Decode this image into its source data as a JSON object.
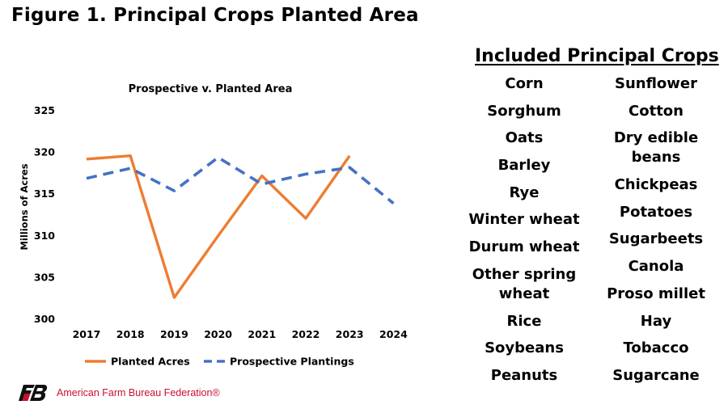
{
  "figure_title": "Figure 1. Principal Crops Planted Area",
  "chart_data": {
    "type": "line",
    "title": "Prospective v. Planted Area",
    "xlabel": "",
    "ylabel": "Millions of Acres",
    "categories": [
      "2017",
      "2018",
      "2019",
      "2020",
      "2021",
      "2022",
      "2023",
      "2024"
    ],
    "ylim": [
      300,
      325
    ],
    "yticks": [
      300,
      305,
      310,
      315,
      320,
      325
    ],
    "grid": false,
    "legend_position": "bottom",
    "series": [
      {
        "name": "Planted Acres",
        "color": "#ED7D31",
        "style": "solid",
        "values": [
          319.2,
          319.6,
          302.6,
          310.0,
          317.2,
          312.1,
          319.6,
          null
        ]
      },
      {
        "name": "Prospective Plantings",
        "color": "#4472C4",
        "style": "dashed",
        "values": [
          316.9,
          318.1,
          315.4,
          319.4,
          316.2,
          317.4,
          318.2,
          313.9
        ]
      }
    ]
  },
  "crops": {
    "title": "Included Principal Crops",
    "left": [
      "Corn",
      "Sorghum",
      "Oats",
      "Barley",
      "Rye",
      "Winter wheat",
      "Durum wheat",
      "Other spring wheat",
      "Rice",
      "Soybeans",
      "Peanuts"
    ],
    "right": [
      "Sunflower",
      "Cotton",
      "Dry edible beans",
      "Chickpeas",
      "Potatoes",
      "Sugarbeets",
      "Canola",
      "Proso millet",
      "Hay",
      "Tobacco",
      "Sugarcane"
    ]
  },
  "footer": {
    "logo_icon": "fb-logo-icon",
    "org_name": "American Farm Bureau Federation®"
  }
}
